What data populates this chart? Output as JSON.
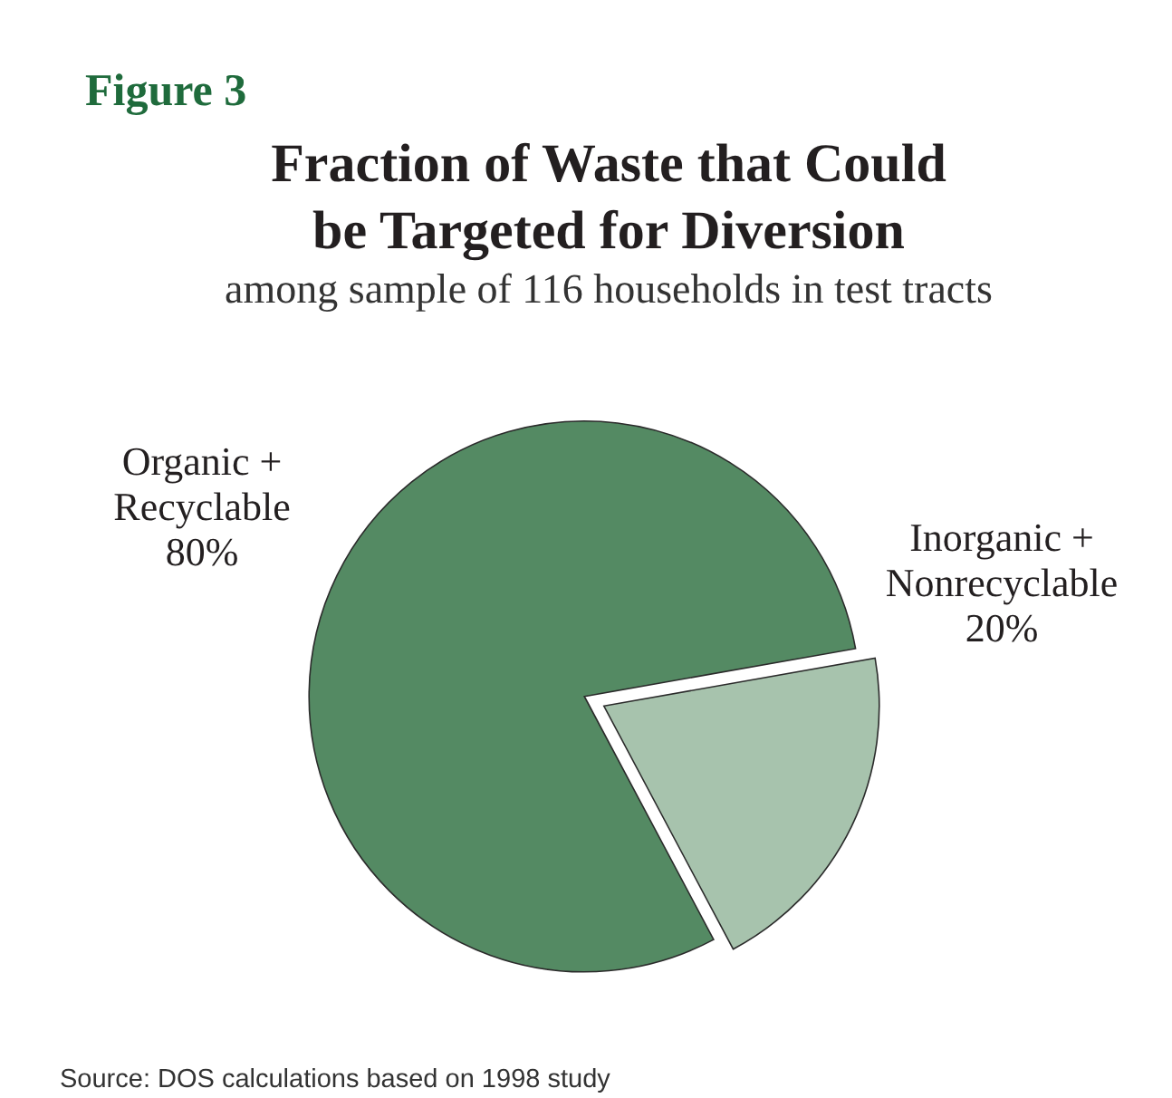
{
  "chart_data": {
    "type": "pie",
    "title": "Fraction of Waste that Could be Targeted for Diversion",
    "subtitle": "among sample of 116 households in test tracts",
    "categories": [
      "Organic + Recyclable",
      "Inorganic + Nonrecyclable"
    ],
    "values": [
      80,
      20
    ],
    "colors": [
      "#548a63",
      "#a7c3ad"
    ],
    "value_labels": [
      "80%",
      "20%"
    ],
    "annotations": [
      "Figure 3",
      "Source: DOS calculations based on 1998 study"
    ]
  }
}
